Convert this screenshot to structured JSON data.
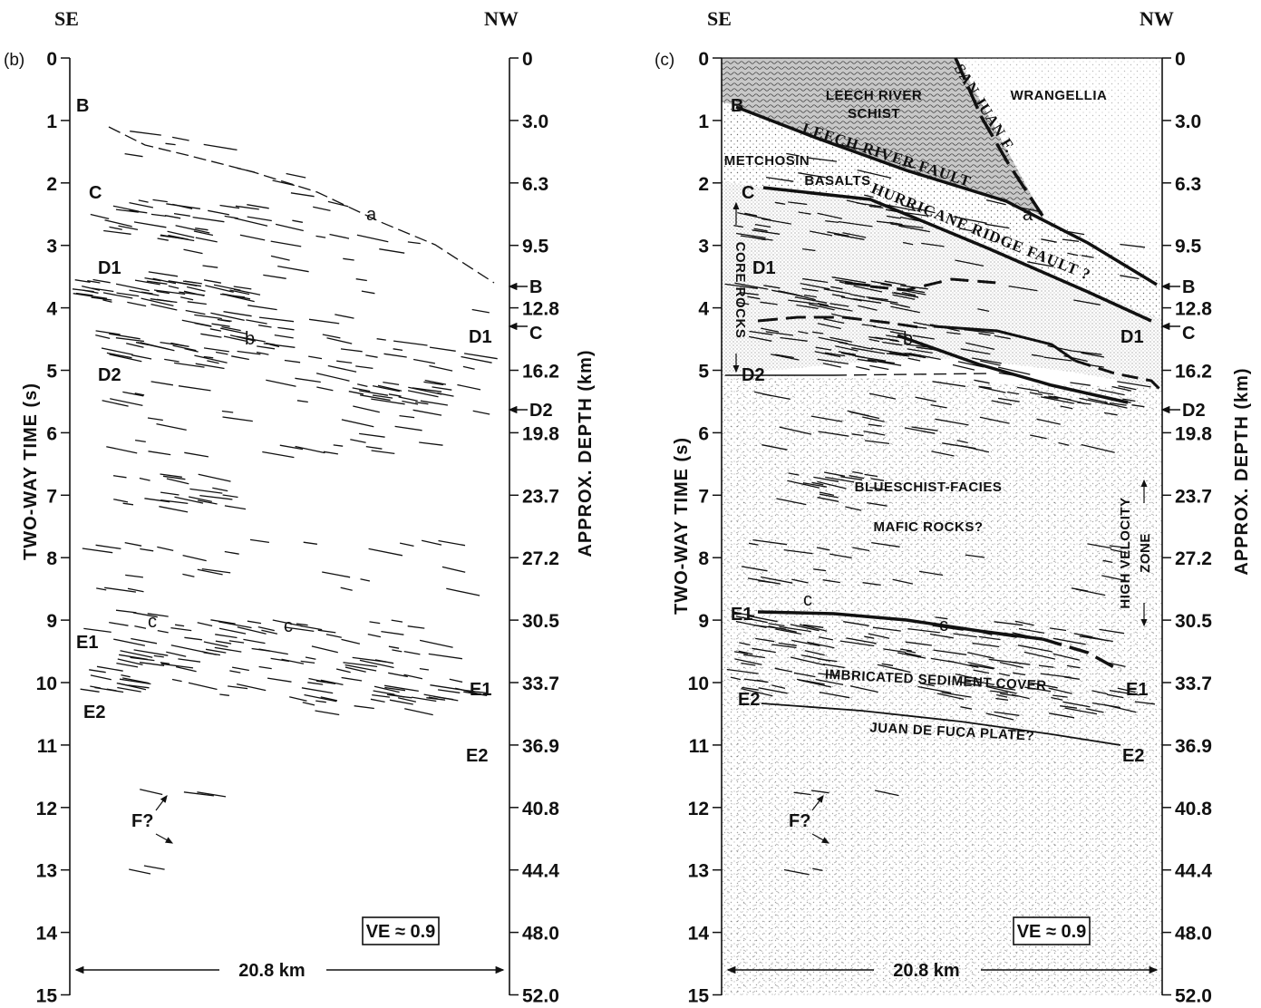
{
  "panels": [
    {
      "id": "b",
      "panel_label": "(b)",
      "direction_left": "SE",
      "direction_right": "NW",
      "left_axis": {
        "title": "TWO-WAY TIME (s)",
        "ticks": [
          "0",
          "1",
          "2",
          "3",
          "4",
          "5",
          "6",
          "7",
          "8",
          "9",
          "10",
          "11",
          "12",
          "13",
          "14",
          "15"
        ]
      },
      "right_axis": {
        "title": "APPROX. DEPTH (km)",
        "ticks": [
          "0",
          "3.0",
          "6.3",
          "9.5",
          "12.8",
          "16.2",
          "19.8",
          "23.7",
          "27.2",
          "30.5",
          "33.7",
          "36.9",
          "40.8",
          "44.4",
          "48.0",
          "52.0"
        ]
      },
      "reflector_labels": [
        "B",
        "C",
        "D1",
        "D2",
        "E1",
        "E2",
        "a",
        "b",
        "c",
        "c",
        "F?",
        "D1",
        "E1",
        "E2"
      ],
      "right_edge_markers": [
        "B",
        "C",
        "D2"
      ],
      "ve_box": "VE ≈ 0.9",
      "scale_bar": "20.8 km"
    },
    {
      "id": "c",
      "panel_label": "(c)",
      "direction_left": "SE",
      "direction_right": "NW",
      "left_axis": {
        "title": "TWO-WAY TIME (s)",
        "ticks": [
          "0",
          "1",
          "2",
          "3",
          "4",
          "5",
          "6",
          "7",
          "8",
          "9",
          "10",
          "11",
          "12",
          "13",
          "14",
          "15"
        ]
      },
      "right_axis": {
        "title": "APPROX. DEPTH (km)",
        "ticks": [
          "0",
          "3.0",
          "6.3",
          "9.5",
          "12.8",
          "16.2",
          "19.8",
          "23.7",
          "27.2",
          "30.5",
          "33.7",
          "36.9",
          "40.8",
          "44.4",
          "48.0",
          "52.0"
        ]
      },
      "unit_labels": {
        "leech_river_1": "LEECH RIVER",
        "leech_river_2": "SCHIST",
        "wrangellia": "WRANGELLIA",
        "metchosin": "METCHOSIN",
        "basalts": "BASALTS",
        "blueschist": "BLUESCHIST-FACIES",
        "mafic": "MAFIC ROCKS?",
        "imbricated": "IMBRICATED SEDIMENT COVER",
        "juan_de_fuca": "JUAN DE FUCA PLATE?",
        "core_rocks": "CORE ROCKS",
        "high_velocity": "HIGH VELOCITY ZONE",
        "high_velocity_1": "HIGH VELOCITY",
        "high_velocity_2": "ZONE"
      },
      "fault_labels": {
        "san_juan": "SAN JUAN F.",
        "leech_river_fault": "LEECH RIVER FAULT",
        "hurricane_ridge": "HURRICANE RIDGE FAULT ?"
      },
      "reflector_labels": [
        "B",
        "C",
        "D1",
        "D2",
        "E1",
        "E2",
        "a",
        "b",
        "c",
        "c",
        "F?",
        "D1",
        "E1",
        "E2"
      ],
      "right_edge_markers": [
        "B",
        "C",
        "D2"
      ],
      "ve_box": "VE ≈ 0.9",
      "scale_bar": "20.8 km"
    }
  ]
}
